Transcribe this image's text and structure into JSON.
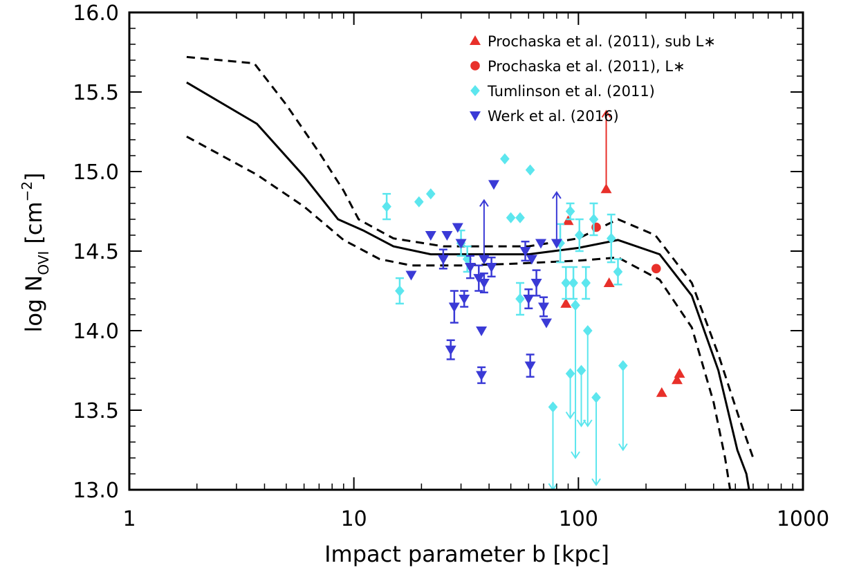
{
  "chart_data": {
    "type": "scatter",
    "x_scale": "log",
    "xlim": [
      1,
      1000
    ],
    "ylim": [
      13.0,
      16.0
    ],
    "xlabel": "Impact parameter b [kpc]",
    "ylabel": "log N_OVI [cm^-2]",
    "ylabel_parts": {
      "lhs": "log N",
      "sub": "OVI",
      "unit_open": "[cm",
      "sup": "−2",
      "unit_close": "]"
    },
    "x_ticks": [
      1,
      10,
      100,
      1000
    ],
    "x_tick_labels": [
      "1",
      "10",
      "100",
      "1000"
    ],
    "y_ticks": [
      13.0,
      13.5,
      14.0,
      14.5,
      15.0,
      15.5,
      16.0
    ],
    "y_tick_labels": [
      "13.0",
      "13.5",
      "14.0",
      "14.5",
      "15.0",
      "15.5",
      "16.0"
    ],
    "grid": false,
    "legend_position": "top-right",
    "colors": {
      "prochaska_sub": "#e8302a",
      "prochaska_L": "#e8302a",
      "tumlinson": "#5ce6ee",
      "werk": "#3a3ad6",
      "model": "#000000"
    },
    "lines": [
      {
        "style": "solid",
        "x": [
          1.8,
          3.7,
          6,
          8.5,
          11,
          15,
          22,
          35,
          60,
          100,
          150,
          230,
          320,
          420,
          510,
          560,
          600
        ],
        "y": [
          15.56,
          15.3,
          14.97,
          14.7,
          14.63,
          14.53,
          14.48,
          14.48,
          14.48,
          14.52,
          14.57,
          14.48,
          14.22,
          13.75,
          13.25,
          13.1,
          12.85
        ]
      },
      {
        "style": "dashed",
        "x": [
          1.8,
          3.6,
          5,
          7,
          9,
          10.5,
          15,
          25,
          40,
          60,
          100,
          150,
          220,
          320,
          420,
          520,
          600
        ],
        "y": [
          15.72,
          15.68,
          15.42,
          15.12,
          14.88,
          14.7,
          14.58,
          14.53,
          14.53,
          14.53,
          14.58,
          14.7,
          14.6,
          14.3,
          13.85,
          13.45,
          13.2
        ]
      },
      {
        "style": "dashed",
        "x": [
          1.8,
          3.7,
          6,
          9,
          13,
          18,
          30,
          50,
          100,
          150,
          230,
          320,
          400,
          450,
          480
        ],
        "y": [
          15.22,
          14.98,
          14.78,
          14.57,
          14.45,
          14.41,
          14.41,
          14.42,
          14.44,
          14.46,
          14.32,
          14.02,
          13.55,
          13.2,
          12.95
        ]
      }
    ],
    "series": [
      {
        "name": "Prochaska et al. (2011), sub L∗",
        "marker": "triangle-up",
        "color": "#e8302a",
        "points": [
          {
            "x": 88,
            "y": 14.17
          },
          {
            "x": 90,
            "y": 14.69
          },
          {
            "x": 133,
            "y": 14.89,
            "upper": 15.38
          },
          {
            "x": 137,
            "y": 14.3
          },
          {
            "x": 235,
            "y": 13.61
          },
          {
            "x": 275,
            "y": 13.69
          },
          {
            "x": 282,
            "y": 13.73
          }
        ]
      },
      {
        "name": "Prochaska et al. (2011), L∗",
        "marker": "circle",
        "color": "#e8302a",
        "points": [
          {
            "x": 120,
            "y": 14.65
          },
          {
            "x": 222,
            "y": 14.39
          }
        ]
      },
      {
        "name": "Tumlinson et al. (2011)",
        "marker": "diamond",
        "color": "#5ce6ee",
        "points": [
          {
            "x": 14,
            "y": 14.78,
            "err": 0.08
          },
          {
            "x": 16,
            "y": 14.25,
            "err": 0.08
          },
          {
            "x": 19.5,
            "y": 14.81
          },
          {
            "x": 22,
            "y": 14.86
          },
          {
            "x": 30,
            "y": 14.55,
            "err": 0.08
          },
          {
            "x": 32,
            "y": 14.45,
            "err": 0.08
          },
          {
            "x": 47,
            "y": 15.08
          },
          {
            "x": 50,
            "y": 14.71
          },
          {
            "x": 55,
            "y": 14.71
          },
          {
            "x": 55,
            "y": 14.2,
            "err": 0.1
          },
          {
            "x": 61,
            "y": 15.01
          },
          {
            "x": 83,
            "y": 14.55,
            "err": 0.12
          },
          {
            "x": 88,
            "y": 14.3,
            "err": 0.1
          },
          {
            "x": 92,
            "y": 14.75,
            "err": 0.05
          },
          {
            "x": 95,
            "y": 14.3,
            "err": 0.1
          },
          {
            "x": 101,
            "y": 14.6,
            "err": 0.1
          },
          {
            "x": 108,
            "y": 14.3,
            "err": 0.1
          },
          {
            "x": 117,
            "y": 14.7,
            "err": 0.1
          },
          {
            "x": 140,
            "y": 14.58,
            "err": 0.15
          },
          {
            "x": 150,
            "y": 14.37,
            "err": 0.08
          },
          {
            "x": 77,
            "y": 13.52,
            "lower": 13.0
          },
          {
            "x": 92,
            "y": 13.73,
            "lower": 13.45
          },
          {
            "x": 97,
            "y": 14.16,
            "lower": 13.2
          },
          {
            "x": 103,
            "y": 13.75,
            "lower": 13.4
          },
          {
            "x": 110,
            "y": 14.0,
            "lower": 13.4
          },
          {
            "x": 120,
            "y": 13.58,
            "lower": 13.03
          },
          {
            "x": 158,
            "y": 13.78,
            "lower": 13.25
          }
        ]
      },
      {
        "name": "Werk et al. (2016)",
        "marker": "triangle-down",
        "color": "#3a3ad6",
        "points": [
          {
            "x": 18,
            "y": 14.35
          },
          {
            "x": 22,
            "y": 14.6
          },
          {
            "x": 25,
            "y": 14.45,
            "err": 0.06
          },
          {
            "x": 26,
            "y": 14.6
          },
          {
            "x": 27,
            "y": 13.88,
            "err": 0.06
          },
          {
            "x": 28,
            "y": 14.15,
            "err": 0.1
          },
          {
            "x": 29,
            "y": 14.65
          },
          {
            "x": 30,
            "y": 14.55
          },
          {
            "x": 31,
            "y": 14.2,
            "err": 0.05
          },
          {
            "x": 33,
            "y": 14.4,
            "err": 0.07
          },
          {
            "x": 36,
            "y": 14.33,
            "err": 0.08
          },
          {
            "x": 37,
            "y": 14.0
          },
          {
            "x": 37,
            "y": 13.72,
            "err": 0.05
          },
          {
            "x": 38,
            "y": 14.3,
            "err": 0.06
          },
          {
            "x": 38,
            "y": 14.45,
            "upper": 14.82
          },
          {
            "x": 41,
            "y": 14.4,
            "err": 0.06
          },
          {
            "x": 42,
            "y": 14.92
          },
          {
            "x": 58,
            "y": 14.5,
            "err": 0.06
          },
          {
            "x": 60,
            "y": 14.2,
            "err": 0.06
          },
          {
            "x": 61,
            "y": 13.78,
            "err": 0.07
          },
          {
            "x": 62,
            "y": 14.45
          },
          {
            "x": 65,
            "y": 14.3,
            "err": 0.08
          },
          {
            "x": 68,
            "y": 14.55
          },
          {
            "x": 70,
            "y": 14.15,
            "err": 0.06
          },
          {
            "x": 72,
            "y": 14.05
          },
          {
            "x": 80,
            "y": 14.55,
            "upper": 14.87
          }
        ]
      }
    ]
  }
}
